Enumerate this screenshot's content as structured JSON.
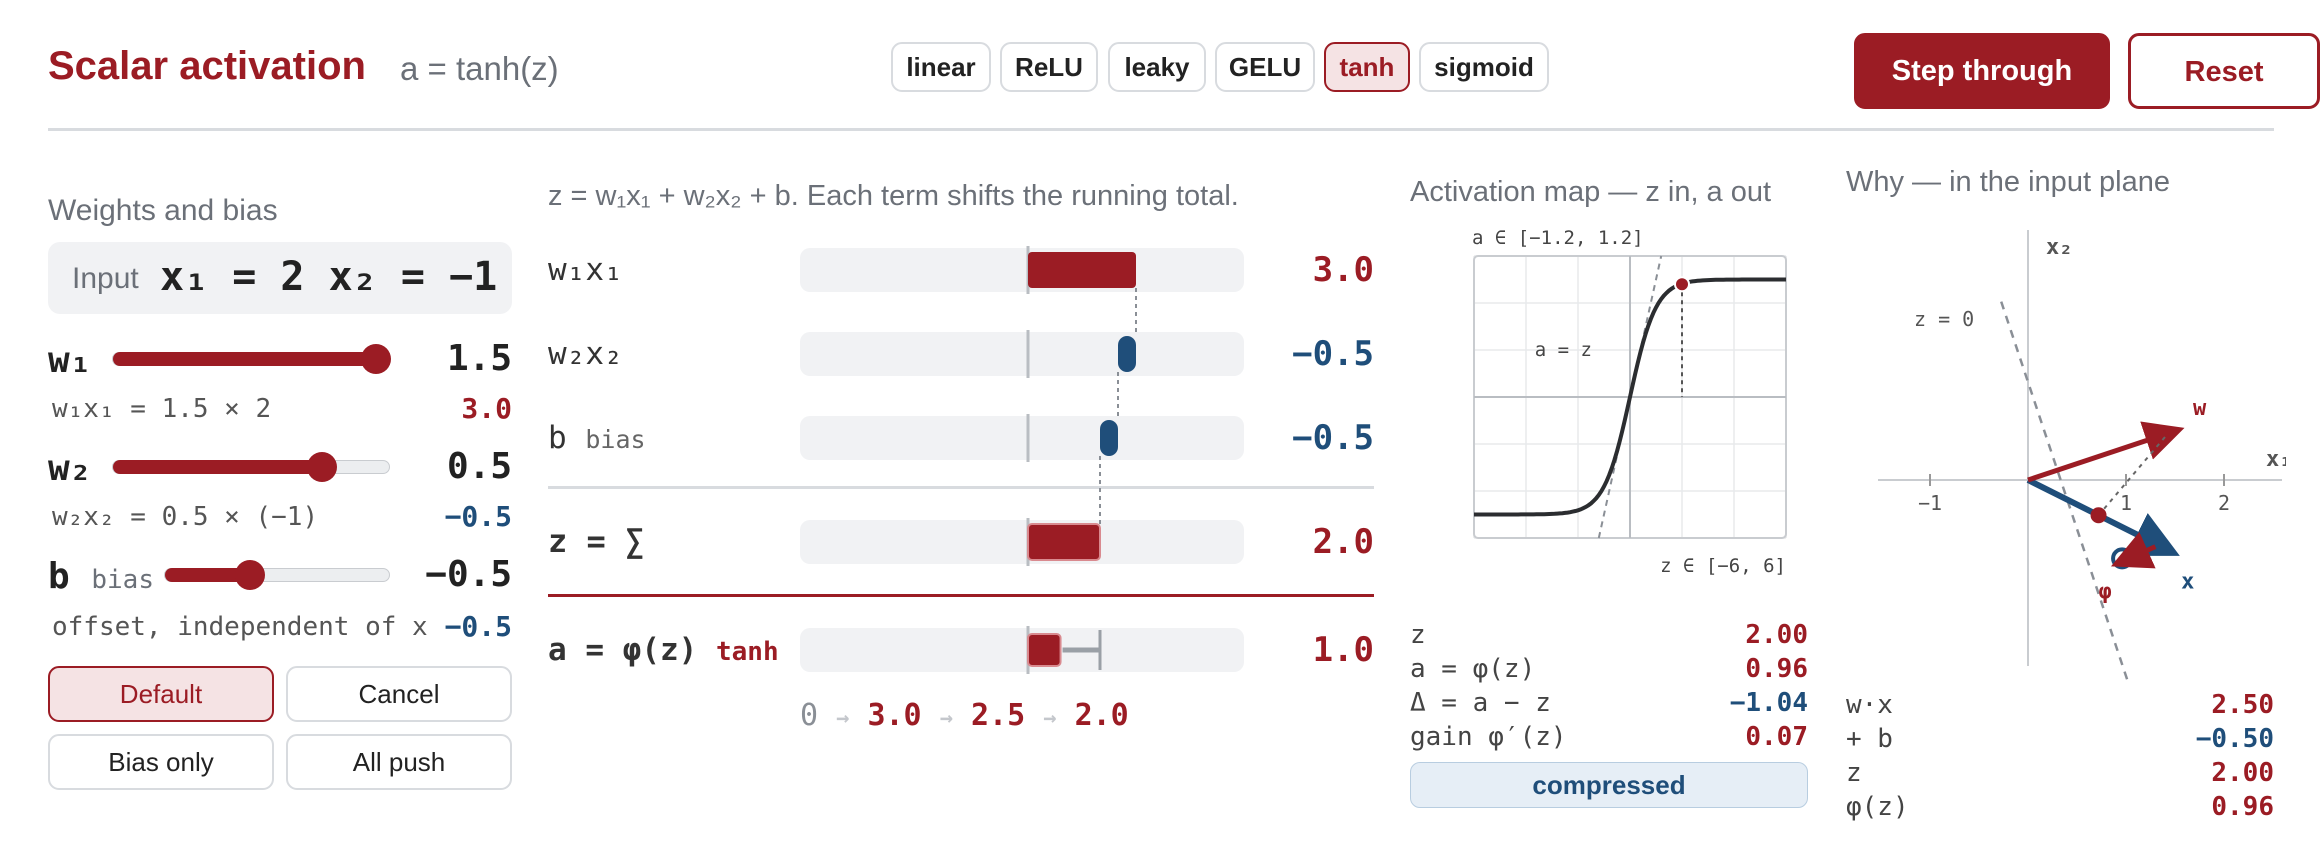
{
  "header": {
    "title": "Scalar activation",
    "formula": "a = tanh(z)",
    "activation_tabs": [
      {
        "label": "linear",
        "active": false
      },
      {
        "label": "ReLU",
        "active": false
      },
      {
        "label": "leaky",
        "active": false
      },
      {
        "label": "GELU",
        "active": false
      },
      {
        "label": "tanh",
        "active": true
      },
      {
        "label": "sigmoid",
        "active": false
      }
    ],
    "step_label": "Step through",
    "reset_label": "Reset"
  },
  "weights": {
    "title": "Weights and bias",
    "input_label": "Input",
    "input_value": "x₁ = 2 x₂ = −1",
    "params": [
      {
        "name": "w₁",
        "sub": "",
        "value": "1.5",
        "level": 1.0,
        "desc": "w₁x₁ = 1.5 × 2",
        "desc_value": "3.0"
      },
      {
        "name": "w₂",
        "sub": "",
        "value": "0.5",
        "level": 0.75,
        "desc": "w₂x₂ = 0.5 × (−1)",
        "desc_value": "−0.5"
      },
      {
        "name": "b",
        "sub": "bias",
        "value": "−0.5",
        "level": 0.375,
        "desc": "offset, independent of x",
        "desc_value": "−0.5"
      }
    ],
    "presets": [
      {
        "label": "Default",
        "active": true
      },
      {
        "label": "Cancel",
        "active": false
      },
      {
        "label": "Bias only",
        "active": false
      },
      {
        "label": "All push",
        "active": false
      }
    ]
  },
  "sum": {
    "description": "z = w₁x₁ + w₂x₂ + b. Each term shifts the running total.",
    "rows": [
      {
        "label": "w₁x₁",
        "sub": "",
        "value": "3.0",
        "start": 0,
        "end": 3.0
      },
      {
        "label": "w₂x₂",
        "sub": "",
        "value": "−0.5",
        "start": 3.0,
        "end": 2.5
      },
      {
        "label": "b",
        "sub": "bias",
        "value": "−0.5",
        "start": 2.5,
        "end": 2.0
      }
    ],
    "z_row": {
      "label": "z = ∑",
      "value": "2.0",
      "z": 2.0
    },
    "a_row": {
      "label": "a = φ(z)",
      "fn": "tanh",
      "value": "1.0",
      "a": 0.96
    },
    "trace": [
      "0",
      "3.0",
      "2.5",
      "2.0"
    ],
    "trace_arrow": "→"
  },
  "activation_map": {
    "title": "Activation map — z in, a out",
    "y_range_label": "a ∈ [−1.2, 1.2]",
    "x_range_label": "z ∈ [−6, 6]",
    "identity_label": "a = z",
    "xlim": [
      -6,
      6
    ],
    "ylim": [
      -1.2,
      1.2
    ],
    "point": {
      "z": 2.0,
      "a": 0.96
    }
  },
  "stats": [
    {
      "label": "z",
      "value": "2.00",
      "tone": "red"
    },
    {
      "label": "a = φ(z)",
      "value": "0.96",
      "tone": "red"
    },
    {
      "label": "Δ = a − z",
      "value": "−1.04",
      "tone": "blue"
    },
    {
      "label": "gain φ′(z)",
      "value": "0.07",
      "tone": "red"
    }
  ],
  "badge": "compressed",
  "input_plane": {
    "title": "Why — in the input plane",
    "x_axis_label": "x₁",
    "y_axis_label": "x₂",
    "ticks": [
      "−1",
      "1",
      "2"
    ],
    "boundary_label": "z = 0",
    "w_label": "w",
    "x_label": "x",
    "phi_label": "φ",
    "w": [
      1.5,
      0.5
    ],
    "x": [
      2,
      -1
    ]
  },
  "plane_stats": [
    {
      "label": "w·x",
      "value": "2.50",
      "tone": "red"
    },
    {
      "label": "+ b",
      "value": "−0.50",
      "tone": "blue"
    },
    {
      "label": "z",
      "value": "2.00",
      "tone": "red"
    },
    {
      "label": "φ(z)",
      "value": "0.96",
      "tone": "red"
    }
  ],
  "colors": {
    "accent": "#9b1c24",
    "negative": "#1f4e7a",
    "muted": "#6b7078"
  }
}
